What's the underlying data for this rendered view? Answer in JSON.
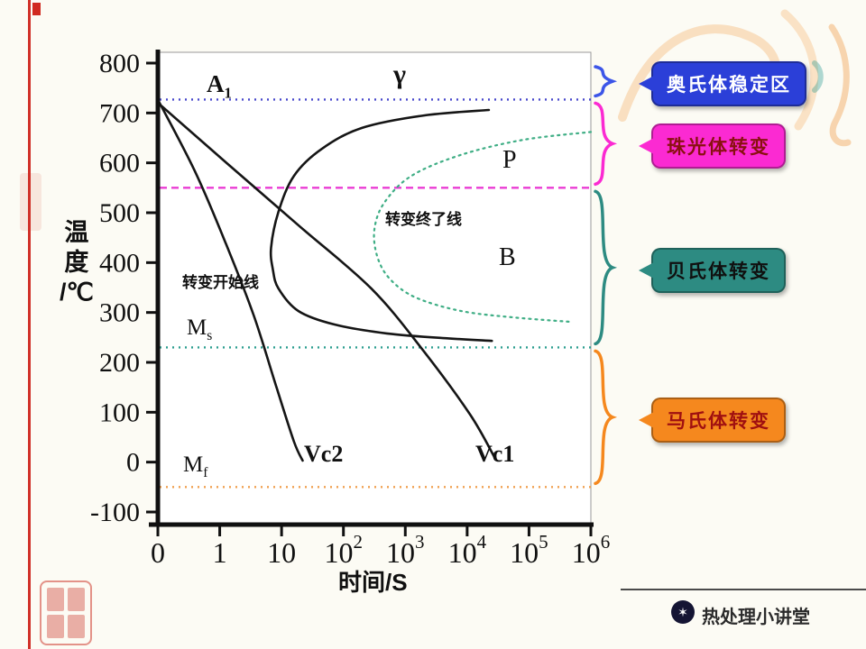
{
  "page": {
    "footer_brand": "热处理小讲堂",
    "logo_glyph": "✶"
  },
  "chart_data": {
    "type": "line",
    "xlabel": "时间/S",
    "ylabel": "温度/℃",
    "x_scale": "logarithmic time: first tick 0, then 1,10,10^2...10^6 seconds (equal decade spacing)",
    "x_ticks": [
      {
        "base": "0"
      },
      {
        "base": "1"
      },
      {
        "base": "10"
      },
      {
        "base": "10",
        "exp": "2"
      },
      {
        "base": "10",
        "exp": "3"
      },
      {
        "base": "10",
        "exp": "4"
      },
      {
        "base": "10",
        "exp": "5"
      },
      {
        "base": "10",
        "exp": "6"
      }
    ],
    "y_ticks": [
      "800",
      "700",
      "600",
      "500",
      "400",
      "300",
      "200",
      "100",
      "0",
      "-100"
    ],
    "ylim": [
      -100,
      800
    ],
    "grid": false,
    "legend": false,
    "reference_lines": [
      {
        "name": "A1",
        "temp": 727,
        "color": "#4848cc",
        "dash": "2,5"
      },
      {
        "name": "pearlite-lower-boundary",
        "temp": 550,
        "color": "#ea3cd4",
        "dash": "8,5"
      },
      {
        "name": "Ms",
        "temp": 230,
        "color": "#2a9d8f",
        "dash": "2,5"
      },
      {
        "name": "Mf",
        "temp": -50,
        "color": "#f0a050",
        "dash": "2,5"
      }
    ],
    "curves": [
      {
        "name": "transformation-start-line",
        "label": "转变开始线",
        "color": "#151515",
        "width": 2.6,
        "dash": "",
        "points": [
          [
            5.35,
            706
          ],
          [
            4.3,
            695
          ],
          [
            3.3,
            670
          ],
          [
            2.65,
            628
          ],
          [
            2.2,
            574
          ],
          [
            1.95,
            502
          ],
          [
            1.83,
            430
          ],
          [
            1.86,
            386
          ],
          [
            1.95,
            348
          ],
          [
            2.27,
            303
          ],
          [
            2.85,
            276
          ],
          [
            3.7,
            258
          ],
          [
            4.7,
            248
          ],
          [
            5.4,
            243
          ]
        ]
      },
      {
        "name": "transformation-finish-line",
        "label": "转变终了线",
        "color": "#3fae85",
        "width": 2.2,
        "dash": "2,5",
        "points": [
          [
            7.0,
            662
          ],
          [
            5.9,
            646
          ],
          [
            4.9,
            616
          ],
          [
            4.1,
            574
          ],
          [
            3.66,
            520
          ],
          [
            3.5,
            466
          ],
          [
            3.55,
            411
          ],
          [
            3.76,
            366
          ],
          [
            4.17,
            330
          ],
          [
            4.9,
            303
          ],
          [
            5.76,
            290
          ],
          [
            6.7,
            281
          ]
        ]
      },
      {
        "name": "Vc2-cooling-curve",
        "label": "Vc2",
        "color": "#151515",
        "width": 2.6,
        "dash": "",
        "points": [
          [
            0.02,
            722
          ],
          [
            0.6,
            583
          ],
          [
            1.1,
            438
          ],
          [
            1.55,
            294
          ],
          [
            1.92,
            149
          ],
          [
            2.2,
            41
          ],
          [
            2.34,
            3
          ]
        ]
      },
      {
        "name": "Vc1-cooling-curve",
        "label": "Vc1",
        "color": "#151515",
        "width": 2.6,
        "dash": "",
        "points": [
          [
            0.06,
            714
          ],
          [
            1.1,
            601
          ],
          [
            2.27,
            475
          ],
          [
            3.45,
            348
          ],
          [
            4.3,
            222
          ],
          [
            5.05,
            95
          ],
          [
            5.45,
            8
          ]
        ]
      }
    ],
    "region_labels": [
      "γ",
      "P",
      "B"
    ]
  },
  "plot_labels": {
    "A1_main": "A",
    "A1_sub": "1",
    "gamma": "γ",
    "P": "P",
    "B": "B",
    "Ms_main": "M",
    "Ms_sub": "s",
    "Mf_main": "M",
    "Mf_sub": "f",
    "start_line": "转变开始线",
    "end_line": "转变终了线",
    "Vc1": "Vc1",
    "Vc2": "Vc2",
    "ylabel_lines": [
      "温",
      "度",
      "/℃"
    ]
  },
  "callouts": [
    {
      "label": "奥氏体稳定区",
      "bg": "#2b3fd8",
      "text": "#ffffff",
      "brace": "#3c55e8",
      "temp_range": [
        800,
        727
      ]
    },
    {
      "label": "珠光体转变",
      "bg": "#fb2ad2",
      "text": "#8a1010",
      "brace": "#fb2ad2",
      "temp_range": [
        727,
        550
      ]
    },
    {
      "label": "贝氏体转变",
      "bg": "#2d8b82",
      "text": "#101010",
      "brace": "#2d8b82",
      "temp_range": [
        550,
        230
      ]
    },
    {
      "label": "马氏体转变",
      "bg": "#f5881e",
      "text": "#a01010",
      "brace": "#f5881e",
      "temp_range": [
        230,
        -50
      ]
    }
  ]
}
